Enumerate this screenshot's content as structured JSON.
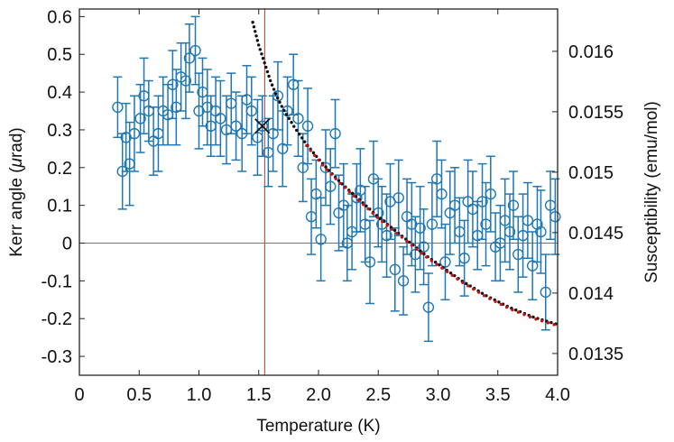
{
  "chart_data": {
    "type": "scatter",
    "title": "",
    "xlabel": "Temperature (K)",
    "ylabel_left": "Kerr angle (μrad)",
    "ylabel_right": "Susceptibility (emu/mol)",
    "xlim": [
      0,
      4.0
    ],
    "ylim_left": [
      -0.35,
      0.62
    ],
    "ylim_right": [
      0.01332,
      0.01635
    ],
    "x_ticks": [
      "0",
      "0.5",
      "1.0",
      "1.5",
      "2.0",
      "2.5",
      "3.0",
      "3.5",
      "4.0"
    ],
    "y_ticks_left": [
      "0.6",
      "0.5",
      "0.4",
      "0.3",
      "0.2",
      "0.1",
      "0",
      "-0.1",
      "-0.2",
      "-0.3"
    ],
    "y_ticks_right": [
      "0.016",
      "0.0155",
      "0.015",
      "0.0145",
      "0.014",
      "0.0135"
    ],
    "vertical_line_x": 1.55,
    "cross_marker": {
      "x": 1.53,
      "y": 0.31
    },
    "colors": {
      "kerr": "#1f77b4",
      "black_dots": "#111111",
      "red_dots": "#cc1111",
      "vline": "#c0392b",
      "zero_line": "#444444"
    },
    "series": [
      {
        "name": "Kerr angle",
        "axis": "left",
        "style": "open-circle-errorbar",
        "x": [
          0.32,
          0.36,
          0.39,
          0.42,
          0.46,
          0.51,
          0.54,
          0.58,
          0.62,
          0.66,
          0.7,
          0.74,
          0.78,
          0.81,
          0.85,
          0.89,
          0.92,
          0.97,
          1.0,
          1.03,
          1.07,
          1.1,
          1.14,
          1.18,
          1.23,
          1.27,
          1.31,
          1.36,
          1.4,
          1.44,
          1.49,
          1.53,
          1.58,
          1.62,
          1.66,
          1.7,
          1.74,
          1.79,
          1.83,
          1.87,
          1.91,
          1.94,
          1.98,
          2.02,
          2.06,
          2.1,
          2.14,
          2.17,
          2.21,
          2.24,
          2.28,
          2.32,
          2.35,
          2.39,
          2.43,
          2.46,
          2.5,
          2.53,
          2.57,
          2.6,
          2.64,
          2.67,
          2.71,
          2.74,
          2.78,
          2.81,
          2.85,
          2.88,
          2.92,
          2.95,
          2.99,
          3.03,
          3.06,
          3.1,
          3.14,
          3.18,
          3.22,
          3.25,
          3.29,
          3.33,
          3.37,
          3.4,
          3.44,
          3.48,
          3.52,
          3.56,
          3.6,
          3.63,
          3.67,
          3.71,
          3.75,
          3.79,
          3.83,
          3.86,
          3.9,
          3.94,
          3.98
        ],
        "y": [
          0.36,
          0.19,
          0.28,
          0.21,
          0.29,
          0.33,
          0.39,
          0.35,
          0.27,
          0.29,
          0.35,
          0.34,
          0.42,
          0.36,
          0.44,
          0.43,
          0.49,
          0.51,
          0.35,
          0.4,
          0.36,
          0.31,
          0.35,
          0.33,
          0.3,
          0.37,
          0.31,
          0.29,
          0.38,
          0.35,
          0.28,
          0.31,
          0.24,
          0.29,
          0.39,
          0.25,
          0.35,
          0.42,
          0.33,
          0.2,
          0.31,
          0.07,
          0.13,
          0.01,
          0.2,
          0.15,
          0.29,
          0.08,
          0.1,
          0.0,
          0.03,
          0.12,
          0.14,
          0.05,
          -0.05,
          0.17,
          0.08,
          0.05,
          0.02,
          0.11,
          -0.07,
          0.12,
          -0.1,
          0.07,
          0.05,
          -0.03,
          0.04,
          -0.01,
          -0.17,
          0.05,
          0.17,
          0.13,
          -0.05,
          0.08,
          0.1,
          0.03,
          -0.04,
          0.11,
          0.09,
          0.02,
          0.11,
          0.05,
          0.13,
          -0.01,
          0.0,
          0.06,
          0.03,
          0.1,
          -0.03,
          0.02,
          0.06,
          -0.06,
          0.05,
          0.03,
          -0.13,
          0.1,
          0.07
        ],
        "err": [
          0.08,
          0.1,
          0.09,
          0.11,
          0.1,
          0.09,
          0.1,
          0.08,
          0.09,
          0.1,
          0.09,
          0.08,
          0.09,
          0.1,
          0.09,
          0.1,
          0.09,
          0.09,
          0.1,
          0.09,
          0.1,
          0.08,
          0.09,
          0.1,
          0.09,
          0.08,
          0.09,
          0.1,
          0.09,
          0.09,
          0.1,
          0.08,
          0.09,
          0.1,
          0.09,
          0.1,
          0.09,
          0.08,
          0.1,
          0.09,
          0.1,
          0.1,
          0.09,
          0.11,
          0.1,
          0.1,
          0.09,
          0.1,
          0.11,
          0.1,
          0.1,
          0.09,
          0.11,
          0.1,
          0.11,
          0.1,
          0.09,
          0.1,
          0.11,
          0.1,
          0.11,
          0.1,
          0.09,
          0.1,
          0.11,
          0.1,
          0.11,
          0.1,
          0.09,
          0.11,
          0.1,
          0.09,
          0.1,
          0.11,
          0.1,
          0.09,
          0.1,
          0.11,
          0.1,
          0.09,
          0.1,
          0.11,
          0.1,
          0.09,
          0.1,
          0.11,
          0.1,
          0.09,
          0.1,
          0.11,
          0.1,
          0.09,
          0.1,
          0.11,
          0.1,
          0.09,
          0.1
        ]
      },
      {
        "name": "Susceptibility (black dotted)",
        "axis": "right",
        "style": "dots",
        "x": [
          1.45,
          1.5,
          1.55,
          1.6,
          1.65,
          1.7,
          1.75,
          1.8,
          1.85,
          1.9,
          1.95,
          2.0,
          2.1,
          2.2,
          2.3,
          2.4,
          2.5,
          2.6,
          2.7,
          2.8,
          2.9,
          3.0,
          3.1,
          3.2,
          3.3,
          3.4,
          3.5,
          3.6,
          3.7,
          3.8,
          3.9,
          4.0
        ],
        "y": [
          0.01624,
          0.01605,
          0.0159,
          0.01575,
          0.01563,
          0.01553,
          0.01545,
          0.01537,
          0.0153,
          0.01523,
          0.01517,
          0.01511,
          0.015,
          0.0149,
          0.01481,
          0.01472,
          0.01463,
          0.01455,
          0.01447,
          0.01439,
          0.01431,
          0.01424,
          0.01417,
          0.0141,
          0.01404,
          0.01398,
          0.01393,
          0.01388,
          0.01384,
          0.0138,
          0.01377,
          0.01374
        ]
      },
      {
        "name": "Susceptibility (red dotted)",
        "axis": "right",
        "style": "dots",
        "x": [
          1.9,
          1.95,
          2.0,
          2.1,
          2.2,
          2.3,
          2.4,
          2.5,
          2.6,
          2.7,
          2.8,
          2.9,
          3.0,
          3.1,
          3.2,
          3.3,
          3.4,
          3.5,
          3.6,
          3.7,
          3.8,
          3.9,
          4.0
        ],
        "y": [
          0.01522,
          0.01516,
          0.0151,
          0.01499,
          0.01489,
          0.0148,
          0.01471,
          0.01462,
          0.01454,
          0.01446,
          0.01438,
          0.0143,
          0.01423,
          0.01416,
          0.01409,
          0.01403,
          0.01397,
          0.01392,
          0.01387,
          0.01383,
          0.01379,
          0.01376,
          0.01373
        ]
      }
    ]
  }
}
